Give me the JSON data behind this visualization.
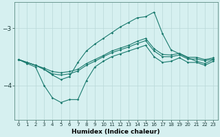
{
  "xlabel": "Humidex (Indice chaleur)",
  "bg_color": "#d6f0f0",
  "line_color": "#1a7a6e",
  "grid_color": "#b8d8d8",
  "xlim": [
    -0.5,
    23.5
  ],
  "ylim": [
    -4.6,
    -2.55
  ],
  "yticks": [
    -4,
    -3
  ],
  "xticks": [
    0,
    1,
    2,
    3,
    4,
    5,
    6,
    7,
    8,
    9,
    10,
    11,
    12,
    13,
    14,
    15,
    16,
    17,
    18,
    19,
    20,
    21,
    22,
    23
  ],
  "big_x": [
    0,
    1,
    2,
    3,
    4,
    5,
    6,
    7,
    8,
    9,
    10,
    11,
    12,
    13,
    14,
    15,
    16,
    17,
    18,
    19,
    20,
    21,
    22,
    23
  ],
  "big_y": [
    -3.55,
    -3.6,
    -3.65,
    -3.72,
    -3.82,
    -3.9,
    -3.85,
    -3.6,
    -3.4,
    -3.28,
    -3.18,
    -3.08,
    -2.98,
    -2.9,
    -2.82,
    -2.8,
    -2.72,
    -3.1,
    -3.38,
    -3.45,
    -3.52,
    -3.58,
    -3.62,
    -3.55
  ],
  "dip_x": [
    0,
    1,
    2,
    3,
    4,
    5,
    6,
    7,
    8,
    9,
    10,
    11,
    12,
    13,
    14,
    15,
    16,
    17,
    18,
    19,
    20,
    21,
    22,
    23
  ],
  "dip_y": [
    -3.55,
    -3.62,
    -3.68,
    -4.0,
    -4.22,
    -4.3,
    -4.25,
    -4.25,
    -3.92,
    -3.68,
    -3.58,
    -3.5,
    -3.45,
    -3.4,
    -3.35,
    -3.3,
    -3.5,
    -3.6,
    -3.58,
    -3.52,
    -3.6,
    -3.6,
    -3.65,
    -3.58
  ],
  "mid1_x": [
    0,
    1,
    2,
    3,
    4,
    5,
    6,
    7,
    8,
    9,
    10,
    11,
    12,
    13,
    14,
    15,
    16,
    17,
    18,
    19,
    20,
    21,
    22,
    23
  ],
  "mid1_y": [
    -3.55,
    -3.6,
    -3.65,
    -3.72,
    -3.8,
    -3.82,
    -3.8,
    -3.75,
    -3.65,
    -3.58,
    -3.5,
    -3.43,
    -3.38,
    -3.33,
    -3.27,
    -3.22,
    -3.4,
    -3.5,
    -3.5,
    -3.47,
    -3.54,
    -3.54,
    -3.57,
    -3.54
  ],
  "mid2_x": [
    0,
    1,
    2,
    3,
    4,
    5,
    6,
    7,
    8,
    9,
    10,
    11,
    12,
    13,
    14,
    15,
    16,
    17,
    18,
    19,
    20,
    21,
    22,
    23
  ],
  "mid2_y": [
    -3.55,
    -3.6,
    -3.65,
    -3.7,
    -3.76,
    -3.78,
    -3.76,
    -3.72,
    -3.62,
    -3.55,
    -3.48,
    -3.4,
    -3.35,
    -3.3,
    -3.23,
    -3.18,
    -3.36,
    -3.46,
    -3.47,
    -3.44,
    -3.51,
    -3.51,
    -3.55,
    -3.52
  ]
}
